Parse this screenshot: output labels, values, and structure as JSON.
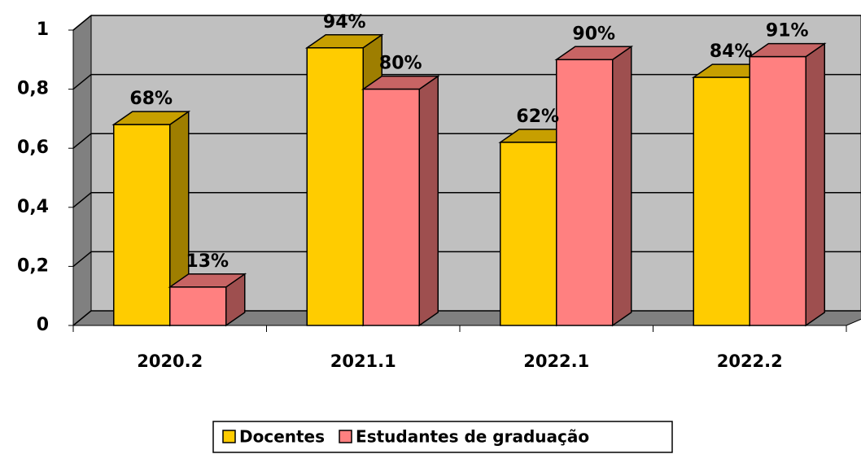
{
  "chart_data": {
    "type": "bar3d",
    "categories": [
      "2020.2",
      "2021.1",
      "2022.1",
      "2022.2"
    ],
    "series": [
      {
        "name": "Docentes",
        "color": "#ffcc00",
        "values": [
          0.68,
          0.94,
          0.62,
          0.84
        ],
        "value_labels": [
          "68%",
          "94%",
          "62%",
          "84%"
        ]
      },
      {
        "name": "Estudantes de graduação",
        "color": "#ff8080",
        "values": [
          0.13,
          0.8,
          0.9,
          0.91
        ],
        "value_labels": [
          "13%",
          "80%",
          "90%",
          "91%"
        ]
      }
    ],
    "ylim": [
      0,
      1
    ],
    "yticks": [
      0,
      {
        "value": 0.2,
        "label": "0,2"
      },
      {
        "value": 0.4,
        "label": "0,4"
      },
      {
        "value": 0.6,
        "label": "0,6"
      },
      {
        "value": 0.8,
        "label": "0,8"
      },
      1
    ],
    "grid": true
  }
}
